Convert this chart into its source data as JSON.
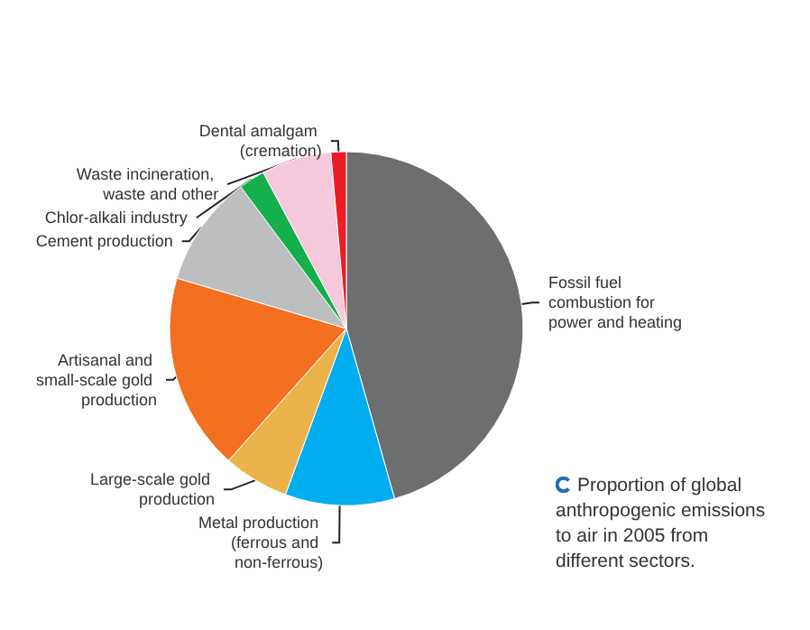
{
  "chart_data": {
    "type": "pie",
    "categories": [
      "Fossil fuel combustion for power and heating",
      "Metal production (ferrous and non-ferrous)",
      "Large-scale gold production",
      "Artisanal and small-scale gold production",
      "Cement production",
      "Chlor-alkali industry",
      "Waste incineration, waste and other",
      "Dental amalgam (cremation)"
    ],
    "values": [
      45.6,
      10,
      6,
      18,
      10.2,
      2.4,
      6.4,
      1.4
    ],
    "colors": [
      "#6d6e70",
      "#00aeef",
      "#ecb34a",
      "#f37021",
      "#bcbec0",
      "#13b04b",
      "#f6c9dc",
      "#ed1c24"
    ],
    "annotations": [
      "Proportion of global anthropogenic emissions to air in 2005 from different sectors."
    ],
    "legend": false
  }
}
